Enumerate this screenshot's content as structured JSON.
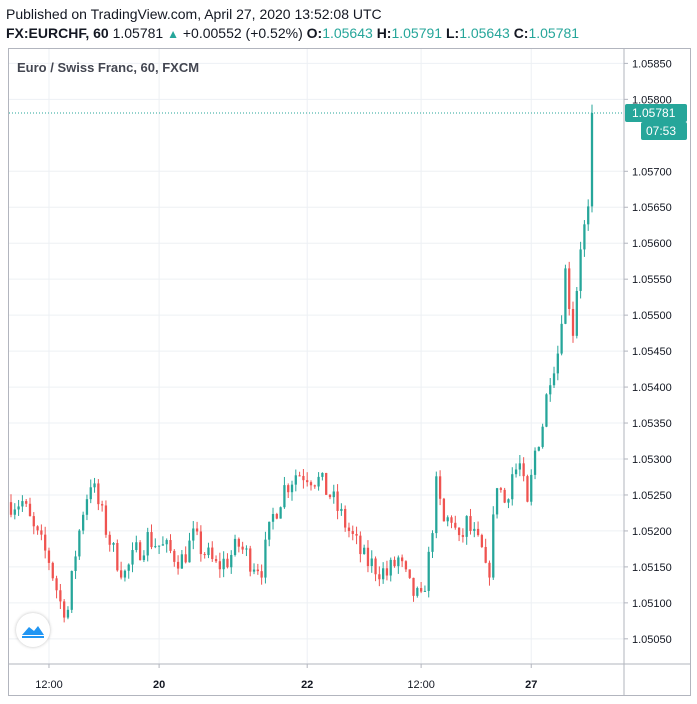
{
  "header": {
    "published": "Published on TradingView.com, April 27, 2020 13:52:08 UTC",
    "symbol": "FX:EURCHF, 60",
    "last": "1.05781",
    "change": "+0.00552 (+0.52%)",
    "open_label": "O:",
    "open": "1.05643",
    "high_label": "H:",
    "high": "1.05791",
    "low_label": "L:",
    "low": "1.05643",
    "close_label": "C:",
    "close": "1.05781"
  },
  "chart_data": {
    "type": "candlestick",
    "title": "Euro / Swiss Franc, 60, FXCM",
    "ylim": [
      1.05015,
      1.0587
    ],
    "y_ticks": [
      1.0505,
      1.051,
      1.0515,
      1.052,
      1.0525,
      1.053,
      1.0535,
      1.054,
      1.0545,
      1.055,
      1.0555,
      1.056,
      1.0565,
      1.057,
      1.058,
      1.0585
    ],
    "y_tick_labels": [
      "1.05050",
      "1.05100",
      "1.05150",
      "1.05200",
      "1.05250",
      "1.05300",
      "1.05350",
      "1.05400",
      "1.05450",
      "1.05500",
      "1.05550",
      "1.05600",
      "1.05650",
      "1.05700",
      "1.05800",
      "1.05850"
    ],
    "x_ticks": [
      {
        "label": "12:00",
        "bar": 10,
        "bold": false
      },
      {
        "label": "20",
        "bar": 39,
        "bold": true
      },
      {
        "label": "22",
        "bar": 78,
        "bold": true
      },
      {
        "label": "12:00",
        "bar": 108,
        "bold": false
      },
      {
        "label": "27",
        "bar": 137,
        "bold": true
      }
    ],
    "current_price": 1.05781,
    "current_price_label": "1.05781",
    "countdown": "07:53",
    "price_line_color": "#26a69a",
    "up_color": "#26a69a",
    "down_color": "#ef5350",
    "series": [
      {
        "name": "",
        "keypoints": [
          [
            0,
            1.0524
          ],
          [
            3,
            1.0524
          ],
          [
            6,
            1.052
          ],
          [
            10,
            1.0516
          ],
          [
            13,
            1.051
          ],
          [
            15,
            1.0509
          ],
          [
            17,
            1.0517
          ],
          [
            19,
            1.0523
          ],
          [
            21,
            1.0527
          ],
          [
            24,
            1.0522
          ],
          [
            27,
            1.0517
          ],
          [
            30,
            1.0514
          ],
          [
            33,
            1.0517
          ],
          [
            36,
            1.0519
          ],
          [
            39,
            1.0518
          ],
          [
            42,
            1.0517
          ],
          [
            45,
            1.0516
          ],
          [
            48,
            1.0519
          ],
          [
            51,
            1.0517
          ],
          [
            54,
            1.0515
          ],
          [
            57,
            1.0516
          ],
          [
            60,
            1.0518
          ],
          [
            63,
            1.0516
          ],
          [
            66,
            1.0515
          ],
          [
            69,
            1.0522
          ],
          [
            72,
            1.0526
          ],
          [
            75,
            1.0528
          ],
          [
            78,
            1.0528
          ],
          [
            81,
            1.0527
          ],
          [
            84,
            1.0525
          ],
          [
            87,
            1.0522
          ],
          [
            90,
            1.0519
          ],
          [
            93,
            1.0516
          ],
          [
            96,
            1.0515
          ],
          [
            99,
            1.0514
          ],
          [
            102,
            1.0516
          ],
          [
            105,
            1.0512
          ],
          [
            108,
            1.051
          ],
          [
            110,
            1.0516
          ],
          [
            112,
            1.0526
          ],
          [
            114,
            1.0521
          ],
          [
            116,
            1.0522
          ],
          [
            118,
            1.0518
          ],
          [
            120,
            1.0521
          ],
          [
            122,
            1.0519
          ],
          [
            124,
            1.0517
          ],
          [
            125,
            1.0514
          ],
          [
            126,
            1.0515
          ],
          [
            128,
            1.0527
          ],
          [
            130,
            1.0524
          ],
          [
            132,
            1.0528
          ],
          [
            134,
            1.0529
          ],
          [
            136,
            1.0523
          ],
          [
            138,
            1.0531
          ],
          [
            140,
            1.0535
          ],
          [
            142,
            1.0542
          ],
          [
            144,
            1.0545
          ],
          [
            146,
            1.0556
          ],
          [
            148,
            1.0548
          ],
          [
            150,
            1.056
          ],
          [
            152,
            1.0564
          ],
          [
            153,
            1.05781
          ]
        ]
      }
    ]
  }
}
